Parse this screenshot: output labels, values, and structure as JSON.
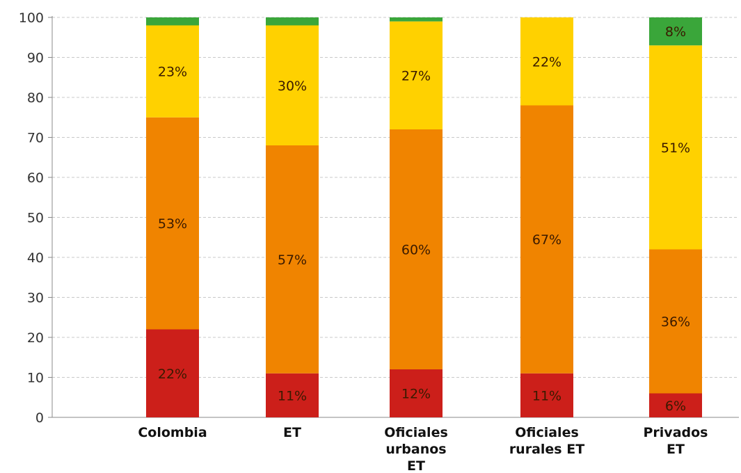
{
  "chart_data": {
    "type": "bar",
    "stacked": true,
    "categories": [
      [
        "Colombia"
      ],
      [
        "ET"
      ],
      [
        "Oficiales",
        "urbanos",
        "ET"
      ],
      [
        "Oficiales",
        "rurales ET"
      ],
      [
        "Privados",
        "ET"
      ]
    ],
    "series": [
      {
        "color": "#cc1f1a",
        "values": [
          22,
          11,
          12,
          11,
          6
        ],
        "labels": [
          "22%",
          "11%",
          "12%",
          "11%",
          "6%"
        ]
      },
      {
        "color": "#f08400",
        "values": [
          53,
          57,
          60,
          67,
          36
        ],
        "labels": [
          "53%",
          "57%",
          "60%",
          "67%",
          "36%"
        ]
      },
      {
        "color": "#ffd100",
        "values": [
          23,
          30,
          27,
          22,
          51
        ],
        "labels": [
          "23%",
          "30%",
          "27%",
          "22%",
          "51%"
        ]
      },
      {
        "color": "#3aa63a",
        "values": [
          2,
          2,
          1,
          0,
          8
        ],
        "labels": [
          "",
          "",
          "",
          "",
          "8%"
        ]
      }
    ],
    "ylim": [
      0,
      100
    ],
    "yticks": [
      0,
      10,
      20,
      30,
      40,
      50,
      60,
      70,
      80,
      90,
      100
    ],
    "grid": true,
    "title": "",
    "xlabel": "",
    "ylabel": ""
  }
}
